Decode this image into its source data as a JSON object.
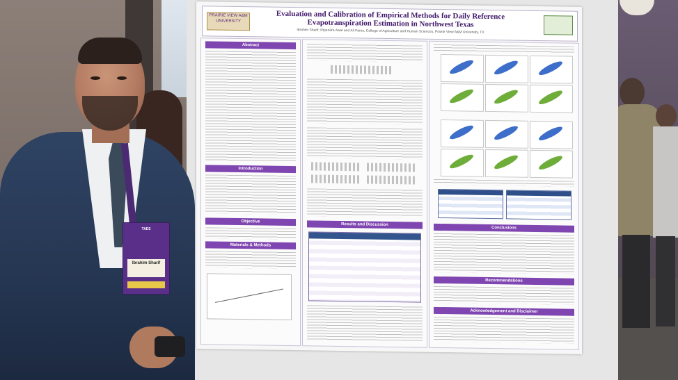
{
  "poster": {
    "title_line1": "Evaluation and Calibration of Empirical Methods for Daily Reference",
    "title_line2": "Evapotranspiration Estimation in Northwest Texas",
    "authors": "Ibrahim Sharif, Ripendra Awal and Ali Fares, College of Agriculture and Human Sciences, Prairie View A&M University, TX",
    "logo_left": "PRAIRIE VIEW A&M UNIVERSITY",
    "sections": {
      "abstract": "Abstract",
      "introduction": "Introduction",
      "objective": "Objective",
      "materials_methods": "Materials & Methods",
      "results_discussion": "Results and Discussion",
      "conclusions": "Conclusions",
      "recommendations": "Recommendations",
      "acknowledgement": "Acknowledgement and Disclaimer"
    }
  },
  "badge": {
    "logo": "TAES",
    "name": "Ibrahim Sharif"
  },
  "colors": {
    "poster_accent": "#7f45b0",
    "table_header": "#33558e",
    "scatter_blue": "#3d6ec9",
    "scatter_green": "#6fad3a"
  }
}
